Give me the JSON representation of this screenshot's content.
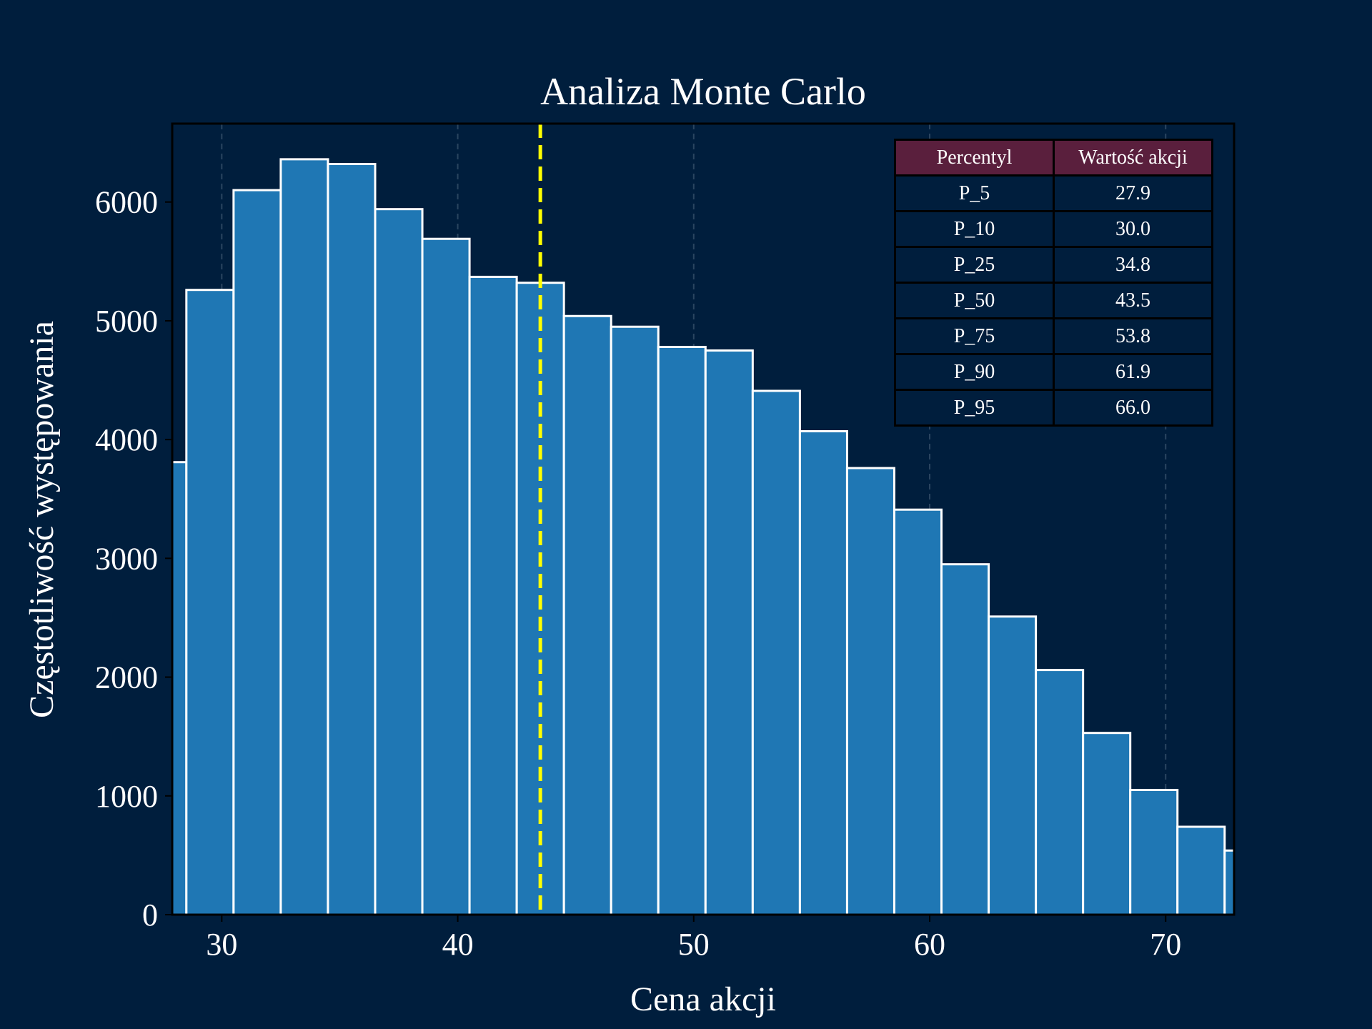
{
  "chart_data": {
    "type": "bar",
    "title": "Analiza Monte Carlo",
    "xlabel": "Cena akcji",
    "ylabel": "Częstotliwość występowania",
    "xlim": [
      27.9,
      72.9
    ],
    "ylim": [
      0,
      6660
    ],
    "x_ticks": [
      30,
      40,
      50,
      60,
      70
    ],
    "y_ticks": [
      0,
      1000,
      2000,
      3000,
      4000,
      5000,
      6000
    ],
    "grid": "x-dashed",
    "bin_edges": [
      26.5,
      28.5,
      30.5,
      32.5,
      34.5,
      36.5,
      38.5,
      40.5,
      42.5,
      44.5,
      46.5,
      48.5,
      50.5,
      52.5,
      54.5,
      56.5,
      58.5,
      60.5,
      62.5,
      64.5,
      66.5,
      68.5,
      70.5,
      72.5,
      74.5
    ],
    "values": [
      3810,
      5260,
      6100,
      6360,
      6320,
      5940,
      5690,
      5370,
      5320,
      5040,
      4950,
      4780,
      4750,
      4410,
      4070,
      3760,
      3410,
      2950,
      2510,
      2060,
      1530,
      1050,
      740,
      540
    ],
    "median_line": {
      "x": 43.5,
      "color": "#ffff00",
      "style": "dashed"
    },
    "colors": {
      "bar": "#1f77b4",
      "bar_edge": "#ffffff",
      "background": "#001e3d",
      "header": "#5a1f3d"
    }
  },
  "table": {
    "headers": [
      "Percentyl",
      "Wartość akcji"
    ],
    "rows": [
      [
        "P_5",
        "27.9"
      ],
      [
        "P_10",
        "30.0"
      ],
      [
        "P_25",
        "34.8"
      ],
      [
        "P_50",
        "43.5"
      ],
      [
        "P_75",
        "53.8"
      ],
      [
        "P_90",
        "61.9"
      ],
      [
        "P_95",
        "66.0"
      ]
    ]
  }
}
